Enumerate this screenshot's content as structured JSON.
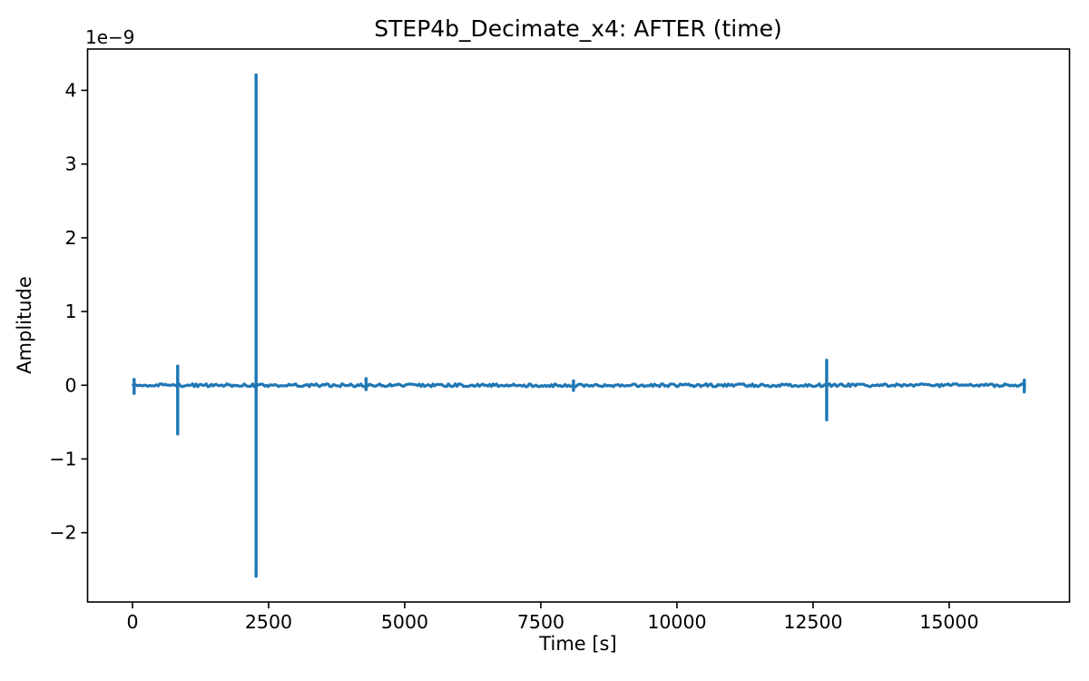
{
  "chart_data": {
    "type": "line",
    "title": "STEP4b_Decimate_x4: AFTER (time)",
    "xlabel": "Time [s]",
    "ylabel": "Amplitude",
    "offset_label": "1e−9",
    "x_tick_values": [
      0,
      2500,
      5000,
      7500,
      10000,
      12500,
      15000
    ],
    "x_tick_labels": [
      "0",
      "2500",
      "5000",
      "7500",
      "10000",
      "12500",
      "15000"
    ],
    "y_tick_values": [
      -2,
      -1,
      0,
      1,
      2,
      3,
      4
    ],
    "y_tick_labels": [
      "−2",
      "−1",
      "0",
      "1",
      "2",
      "3",
      "4"
    ],
    "xlim": [
      -825,
      17210
    ],
    "ylim": [
      -2.94,
      4.56
    ],
    "y_units_multiplier_note": "y values are in units of 1e−9",
    "line_color": "#1f77b4",
    "axis_color": "#000000",
    "background_color": "#ffffff",
    "grid": false,
    "legend": null,
    "baseline": {
      "t_start": 0,
      "t_end": 16400,
      "value": 0
    },
    "noise_amplitude": 0.02,
    "spikes": [
      {
        "t": 30,
        "min": -0.11,
        "max": 0.08
      },
      {
        "t": 830,
        "min": -0.66,
        "max": 0.26
      },
      {
        "t": 2270,
        "min": -2.59,
        "max": 4.21
      },
      {
        "t": 4290,
        "min": -0.06,
        "max": 0.09
      },
      {
        "t": 8100,
        "min": -0.07,
        "max": 0.06
      },
      {
        "t": 12750,
        "min": -0.47,
        "max": 0.34
      },
      {
        "t": 16380,
        "min": -0.09,
        "max": 0.07
      }
    ]
  }
}
